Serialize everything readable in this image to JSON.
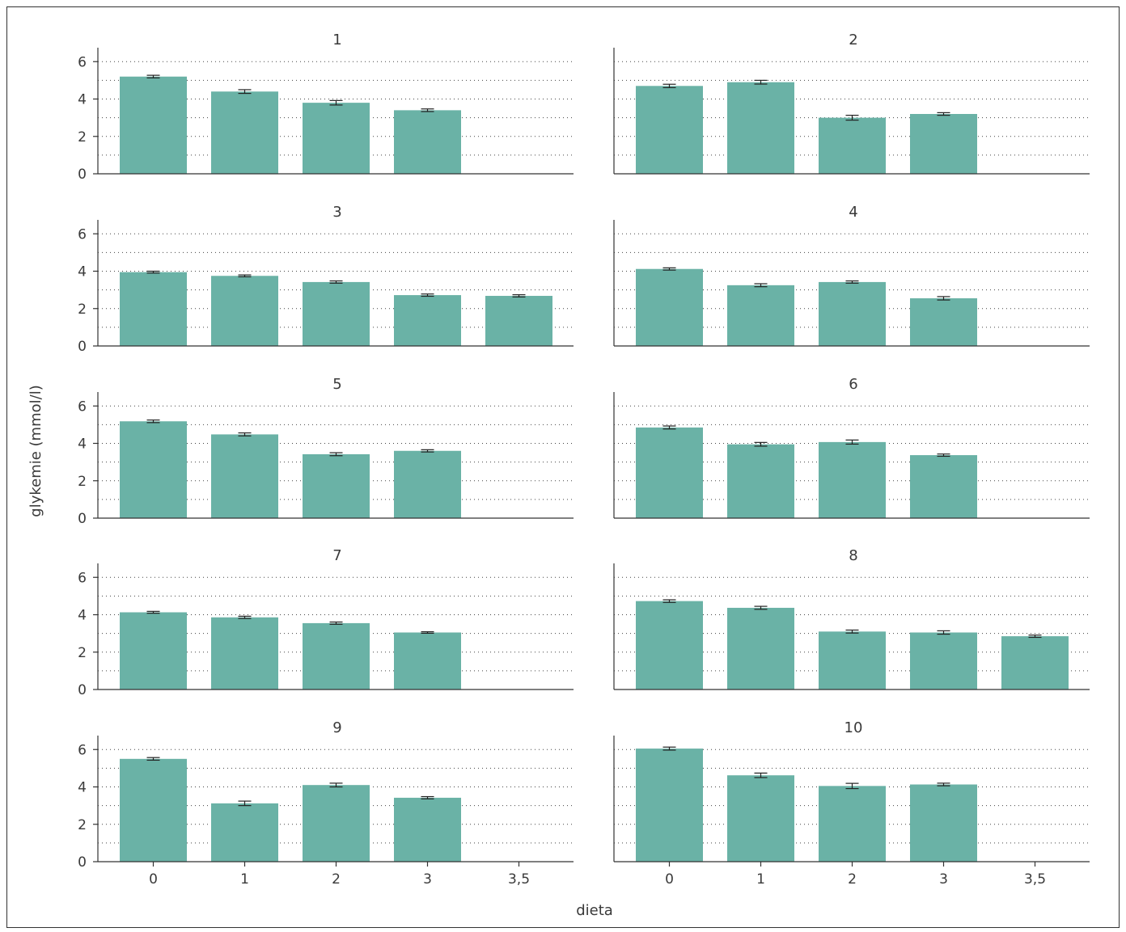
{
  "chart_data": {
    "type": "bar",
    "xlabel": "dieta",
    "ylabel": "glykemie (mmol/l)",
    "ylim": [
      0,
      6.4
    ],
    "yticks": [
      0,
      2,
      4,
      6
    ],
    "grid": "dotted horizontal at every 1 unit",
    "categories": [
      "0",
      "1",
      "2",
      "3",
      "3,5"
    ],
    "bar_color": "#6ab2a6",
    "panels": [
      {
        "title": "1",
        "values": [
          5.2,
          4.4,
          3.8,
          3.4,
          null
        ],
        "errors": [
          0.07,
          0.1,
          0.12,
          0.07,
          null
        ]
      },
      {
        "title": "2",
        "values": [
          4.7,
          4.9,
          3.0,
          3.2,
          null
        ],
        "errors": [
          0.09,
          0.1,
          0.13,
          0.07,
          null
        ]
      },
      {
        "title": "3",
        "values": [
          3.95,
          3.75,
          3.42,
          2.72,
          2.68
        ],
        "errors": [
          0.05,
          0.05,
          0.06,
          0.06,
          0.06
        ]
      },
      {
        "title": "4",
        "values": [
          4.12,
          3.25,
          3.42,
          2.55,
          null
        ],
        "errors": [
          0.06,
          0.08,
          0.06,
          0.09,
          null
        ]
      },
      {
        "title": "5",
        "values": [
          5.18,
          4.48,
          3.42,
          3.6,
          null
        ],
        "errors": [
          0.07,
          0.08,
          0.08,
          0.06,
          null
        ]
      },
      {
        "title": "6",
        "values": [
          4.85,
          3.95,
          4.07,
          3.37,
          null
        ],
        "errors": [
          0.08,
          0.1,
          0.11,
          0.06,
          null
        ]
      },
      {
        "title": "7",
        "values": [
          4.13,
          3.86,
          3.55,
          3.05,
          null
        ],
        "errors": [
          0.05,
          0.06,
          0.06,
          0.04,
          null
        ]
      },
      {
        "title": "8",
        "values": [
          4.73,
          4.37,
          3.1,
          3.05,
          2.85
        ],
        "errors": [
          0.07,
          0.08,
          0.08,
          0.09,
          0.06
        ]
      },
      {
        "title": "9",
        "values": [
          5.5,
          3.12,
          4.1,
          3.42,
          null
        ],
        "errors": [
          0.07,
          0.12,
          0.1,
          0.06,
          null
        ]
      },
      {
        "title": "10",
        "values": [
          6.05,
          4.62,
          4.05,
          4.13,
          null
        ],
        "errors": [
          0.08,
          0.12,
          0.14,
          0.07,
          null
        ]
      }
    ]
  }
}
